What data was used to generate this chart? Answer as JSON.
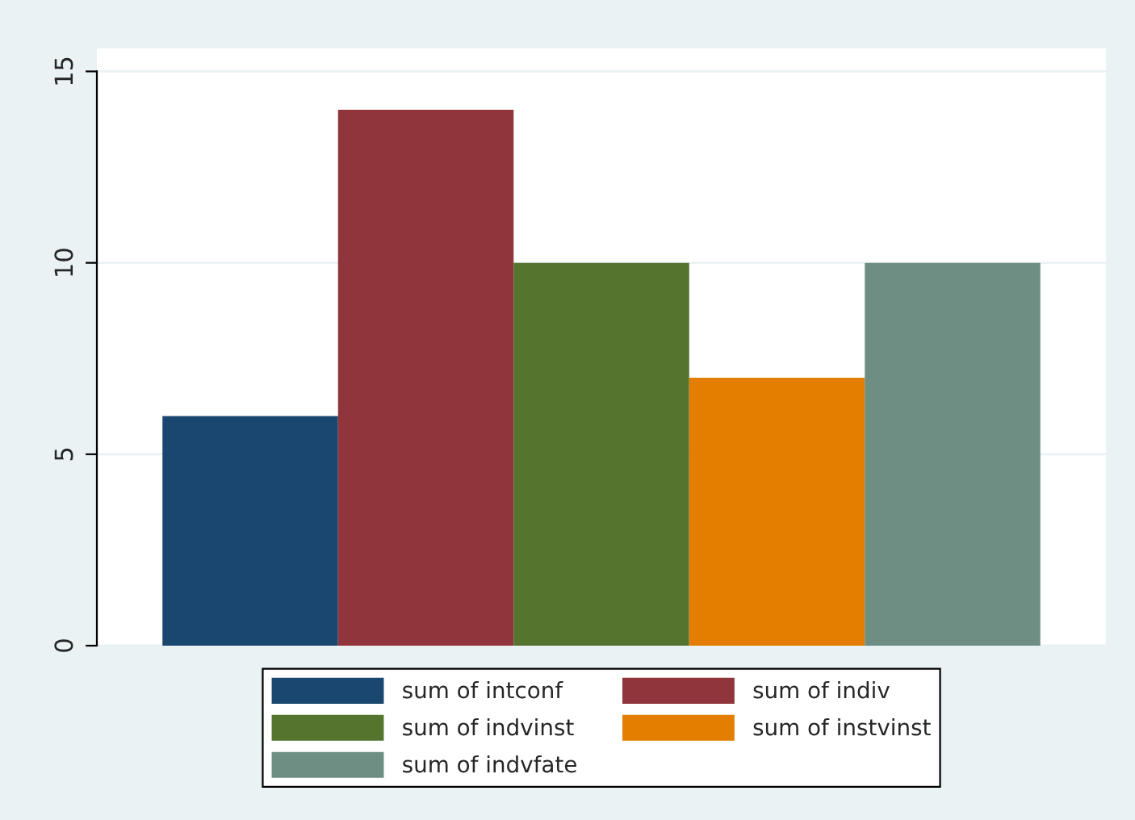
{
  "chart_data": {
    "type": "bar",
    "categories": [
      null
    ],
    "series": [
      {
        "name": "sum of intconf",
        "color": "#1a476f",
        "values": [
          6
        ]
      },
      {
        "name": "sum of indiv",
        "color": "#90353b",
        "values": [
          14
        ]
      },
      {
        "name": "sum of indvinst",
        "color": "#55752f",
        "values": [
          10
        ]
      },
      {
        "name": "sum of instvinst",
        "color": "#e37e00",
        "values": [
          7
        ]
      },
      {
        "name": "sum of indvfate",
        "color": "#6e8e84",
        "values": [
          10
        ]
      }
    ],
    "ylim": [
      0,
      15.6
    ],
    "yticks": [
      0,
      5,
      10,
      15
    ],
    "grid": "y",
    "legend": "bottom"
  }
}
